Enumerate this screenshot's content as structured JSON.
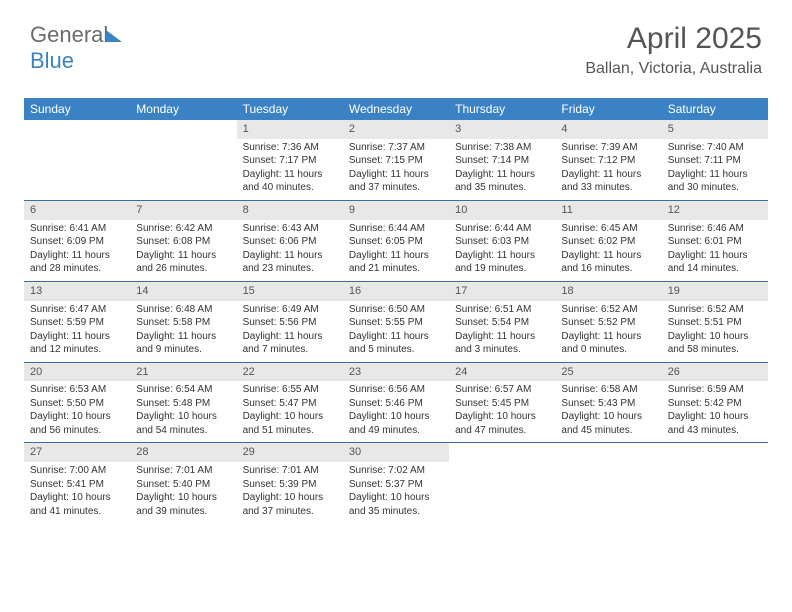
{
  "logo": {
    "part1": "General",
    "part2": "Blue"
  },
  "title": "April 2025",
  "location": "Ballan, Victoria, Australia",
  "colors": {
    "header_bg": "#3b82c4",
    "week_divider": "#3b6fa0",
    "daynum_bg": "#e8e8e8",
    "text": "#333333",
    "muted": "#555555",
    "page_bg": "#ffffff"
  },
  "dayNames": [
    "Sunday",
    "Monday",
    "Tuesday",
    "Wednesday",
    "Thursday",
    "Friday",
    "Saturday"
  ],
  "weeks": [
    [
      {
        "empty": true
      },
      {
        "empty": true
      },
      {
        "n": "1",
        "sr": "Sunrise: 7:36 AM",
        "ss": "Sunset: 7:17 PM",
        "dl": "Daylight: 11 hours and 40 minutes."
      },
      {
        "n": "2",
        "sr": "Sunrise: 7:37 AM",
        "ss": "Sunset: 7:15 PM",
        "dl": "Daylight: 11 hours and 37 minutes."
      },
      {
        "n": "3",
        "sr": "Sunrise: 7:38 AM",
        "ss": "Sunset: 7:14 PM",
        "dl": "Daylight: 11 hours and 35 minutes."
      },
      {
        "n": "4",
        "sr": "Sunrise: 7:39 AM",
        "ss": "Sunset: 7:12 PM",
        "dl": "Daylight: 11 hours and 33 minutes."
      },
      {
        "n": "5",
        "sr": "Sunrise: 7:40 AM",
        "ss": "Sunset: 7:11 PM",
        "dl": "Daylight: 11 hours and 30 minutes."
      }
    ],
    [
      {
        "n": "6",
        "sr": "Sunrise: 6:41 AM",
        "ss": "Sunset: 6:09 PM",
        "dl": "Daylight: 11 hours and 28 minutes."
      },
      {
        "n": "7",
        "sr": "Sunrise: 6:42 AM",
        "ss": "Sunset: 6:08 PM",
        "dl": "Daylight: 11 hours and 26 minutes."
      },
      {
        "n": "8",
        "sr": "Sunrise: 6:43 AM",
        "ss": "Sunset: 6:06 PM",
        "dl": "Daylight: 11 hours and 23 minutes."
      },
      {
        "n": "9",
        "sr": "Sunrise: 6:44 AM",
        "ss": "Sunset: 6:05 PM",
        "dl": "Daylight: 11 hours and 21 minutes."
      },
      {
        "n": "10",
        "sr": "Sunrise: 6:44 AM",
        "ss": "Sunset: 6:03 PM",
        "dl": "Daylight: 11 hours and 19 minutes."
      },
      {
        "n": "11",
        "sr": "Sunrise: 6:45 AM",
        "ss": "Sunset: 6:02 PM",
        "dl": "Daylight: 11 hours and 16 minutes."
      },
      {
        "n": "12",
        "sr": "Sunrise: 6:46 AM",
        "ss": "Sunset: 6:01 PM",
        "dl": "Daylight: 11 hours and 14 minutes."
      }
    ],
    [
      {
        "n": "13",
        "sr": "Sunrise: 6:47 AM",
        "ss": "Sunset: 5:59 PM",
        "dl": "Daylight: 11 hours and 12 minutes."
      },
      {
        "n": "14",
        "sr": "Sunrise: 6:48 AM",
        "ss": "Sunset: 5:58 PM",
        "dl": "Daylight: 11 hours and 9 minutes."
      },
      {
        "n": "15",
        "sr": "Sunrise: 6:49 AM",
        "ss": "Sunset: 5:56 PM",
        "dl": "Daylight: 11 hours and 7 minutes."
      },
      {
        "n": "16",
        "sr": "Sunrise: 6:50 AM",
        "ss": "Sunset: 5:55 PM",
        "dl": "Daylight: 11 hours and 5 minutes."
      },
      {
        "n": "17",
        "sr": "Sunrise: 6:51 AM",
        "ss": "Sunset: 5:54 PM",
        "dl": "Daylight: 11 hours and 3 minutes."
      },
      {
        "n": "18",
        "sr": "Sunrise: 6:52 AM",
        "ss": "Sunset: 5:52 PM",
        "dl": "Daylight: 11 hours and 0 minutes."
      },
      {
        "n": "19",
        "sr": "Sunrise: 6:52 AM",
        "ss": "Sunset: 5:51 PM",
        "dl": "Daylight: 10 hours and 58 minutes."
      }
    ],
    [
      {
        "n": "20",
        "sr": "Sunrise: 6:53 AM",
        "ss": "Sunset: 5:50 PM",
        "dl": "Daylight: 10 hours and 56 minutes."
      },
      {
        "n": "21",
        "sr": "Sunrise: 6:54 AM",
        "ss": "Sunset: 5:48 PM",
        "dl": "Daylight: 10 hours and 54 minutes."
      },
      {
        "n": "22",
        "sr": "Sunrise: 6:55 AM",
        "ss": "Sunset: 5:47 PM",
        "dl": "Daylight: 10 hours and 51 minutes."
      },
      {
        "n": "23",
        "sr": "Sunrise: 6:56 AM",
        "ss": "Sunset: 5:46 PM",
        "dl": "Daylight: 10 hours and 49 minutes."
      },
      {
        "n": "24",
        "sr": "Sunrise: 6:57 AM",
        "ss": "Sunset: 5:45 PM",
        "dl": "Daylight: 10 hours and 47 minutes."
      },
      {
        "n": "25",
        "sr": "Sunrise: 6:58 AM",
        "ss": "Sunset: 5:43 PM",
        "dl": "Daylight: 10 hours and 45 minutes."
      },
      {
        "n": "26",
        "sr": "Sunrise: 6:59 AM",
        "ss": "Sunset: 5:42 PM",
        "dl": "Daylight: 10 hours and 43 minutes."
      }
    ],
    [
      {
        "n": "27",
        "sr": "Sunrise: 7:00 AM",
        "ss": "Sunset: 5:41 PM",
        "dl": "Daylight: 10 hours and 41 minutes."
      },
      {
        "n": "28",
        "sr": "Sunrise: 7:01 AM",
        "ss": "Sunset: 5:40 PM",
        "dl": "Daylight: 10 hours and 39 minutes."
      },
      {
        "n": "29",
        "sr": "Sunrise: 7:01 AM",
        "ss": "Sunset: 5:39 PM",
        "dl": "Daylight: 10 hours and 37 minutes."
      },
      {
        "n": "30",
        "sr": "Sunrise: 7:02 AM",
        "ss": "Sunset: 5:37 PM",
        "dl": "Daylight: 10 hours and 35 minutes."
      },
      {
        "empty": true
      },
      {
        "empty": true
      },
      {
        "empty": true
      }
    ]
  ]
}
